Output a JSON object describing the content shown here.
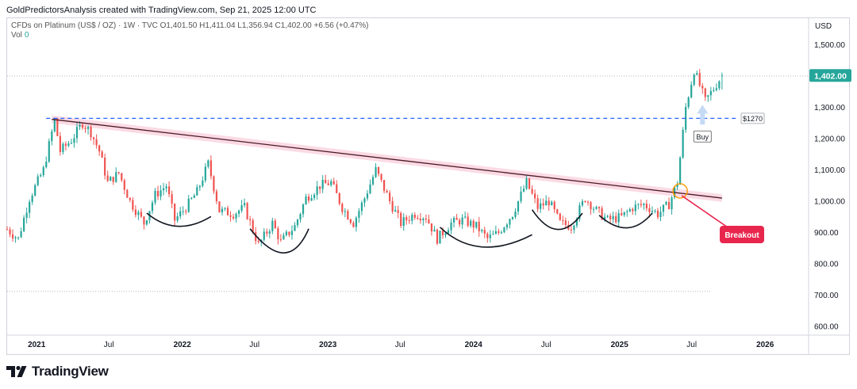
{
  "header": {
    "attribution": "GoldPredictorsAnalysis created with TradingView.com, Sep 21, 2025 12:00 UTC",
    "symbol_line": "CFDs on Platinum (US$ / OZ) · 1W · TVC  O1,401.50  H1,411.04  L1,356.94  C1,402.00  +6.56 (+0.47%)",
    "volume_label": "Vol",
    "volume_value": "0",
    "currency": "USD"
  },
  "brand": {
    "name": "TradingView",
    "logo_icon": "tradingview-logo-icon"
  },
  "colors": {
    "up": "#26a69a",
    "down": "#ef5350",
    "trendline": "#4a1a24",
    "channel": "#f8bbd0",
    "support": "#2962ff",
    "arc": "#131722",
    "breakout": "#e8264d",
    "circle": "#ff9800",
    "arrow": "#c5daf5",
    "price_badge": "#26a69a",
    "dotted_line": "#b8b8c4"
  },
  "chart_data": {
    "type": "candlestick",
    "title": "CFDs on Platinum (US$ / OZ) · 1W · TVC",
    "ohlc": {
      "open": 1401.5,
      "high": 1411.04,
      "low": 1356.94,
      "close": 1402.0,
      "change": 6.56,
      "change_pct": 0.47
    },
    "x_range": [
      "2020-10-19",
      "2026-04-20"
    ],
    "ylim": [
      572,
      1585
    ],
    "y_ticks": [
      "1,500.00",
      "1,400.00",
      "1,300.00",
      "1,200.00",
      "1,100.00",
      "1,000.00",
      "900.00",
      "800.00",
      "700.00",
      "600.00"
    ],
    "y_tick_values": [
      1500,
      1400,
      1300,
      1200,
      1100,
      1000,
      900,
      800,
      700,
      600
    ],
    "x_ticks": [
      {
        "label": "2021",
        "date": "2021-01-01",
        "bold": true
      },
      {
        "label": "Jul",
        "date": "2021-07-01",
        "bold": false
      },
      {
        "label": "2022",
        "date": "2022-01-01",
        "bold": true
      },
      {
        "label": "Jul",
        "date": "2022-07-01",
        "bold": false
      },
      {
        "label": "2023",
        "date": "2023-01-01",
        "bold": true
      },
      {
        "label": "Jul",
        "date": "2023-07-01",
        "bold": false
      },
      {
        "label": "2024",
        "date": "2024-01-01",
        "bold": true
      },
      {
        "label": "Jul",
        "date": "2024-07-01",
        "bold": false
      },
      {
        "label": "2025",
        "date": "2025-01-01",
        "bold": true
      },
      {
        "label": "Jul",
        "date": "2025-07-01",
        "bold": false
      },
      {
        "label": "2026",
        "date": "2026-01-01",
        "bold": true
      }
    ],
    "price_path": [
      [
        "2020-10-19",
        910
      ],
      [
        "2020-11-16",
        880
      ],
      [
        "2020-12-14",
        1010
      ],
      [
        "2021-01-18",
        1100
      ],
      [
        "2021-02-15",
        1260
      ],
      [
        "2021-03-01",
        1160
      ],
      [
        "2021-03-29",
        1195
      ],
      [
        "2021-04-26",
        1250
      ],
      [
        "2021-05-17",
        1220
      ],
      [
        "2021-06-07",
        1160
      ],
      [
        "2021-06-28",
        1060
      ],
      [
        "2021-07-26",
        1090
      ],
      [
        "2021-08-23",
        1000
      ],
      [
        "2021-09-27",
        930
      ],
      [
        "2021-10-25",
        1020
      ],
      [
        "2021-11-22",
        1050
      ],
      [
        "2021-12-13",
        940
      ],
      [
        "2022-01-10",
        980
      ],
      [
        "2022-02-07",
        1030
      ],
      [
        "2022-03-07",
        1120
      ],
      [
        "2022-04-04",
        970
      ],
      [
        "2022-05-09",
        960
      ],
      [
        "2022-06-06",
        980
      ],
      [
        "2022-07-11",
        860
      ],
      [
        "2022-08-15",
        930
      ],
      [
        "2022-09-05",
        870
      ],
      [
        "2022-10-10",
        920
      ],
      [
        "2022-11-07",
        1010
      ],
      [
        "2022-12-12",
        1050
      ],
      [
        "2023-01-09",
        1060
      ],
      [
        "2023-02-06",
        980
      ],
      [
        "2023-03-06",
        930
      ],
      [
        "2023-04-03",
        1010
      ],
      [
        "2023-05-01",
        1100
      ],
      [
        "2023-06-05",
        1000
      ],
      [
        "2023-07-03",
        930
      ],
      [
        "2023-08-07",
        960
      ],
      [
        "2023-09-04",
        950
      ],
      [
        "2023-10-02",
        880
      ],
      [
        "2023-11-06",
        930
      ],
      [
        "2023-12-04",
        940
      ],
      [
        "2024-01-08",
        920
      ],
      [
        "2024-02-05",
        880
      ],
      [
        "2024-03-04",
        900
      ],
      [
        "2024-04-08",
        960
      ],
      [
        "2024-05-13",
        1060
      ],
      [
        "2024-06-10",
        980
      ],
      [
        "2024-07-08",
        1000
      ],
      [
        "2024-08-05",
        930
      ],
      [
        "2024-09-02",
        920
      ],
      [
        "2024-10-07",
        1010
      ],
      [
        "2024-11-04",
        970
      ],
      [
        "2024-12-02",
        940
      ],
      [
        "2025-01-06",
        950
      ],
      [
        "2025-02-03",
        980
      ],
      [
        "2025-03-03",
        990
      ],
      [
        "2025-04-07",
        960
      ],
      [
        "2025-05-05",
        990
      ],
      [
        "2025-05-26",
        1060
      ],
      [
        "2025-06-16",
        1300
      ],
      [
        "2025-07-07",
        1420
      ],
      [
        "2025-08-04",
        1320
      ],
      [
        "2025-08-25",
        1360
      ],
      [
        "2025-09-15",
        1402
      ]
    ],
    "annotations": {
      "trendline": {
        "from": [
          "2021-02-08",
          1262
        ],
        "to": [
          "2025-09-15",
          1010
        ]
      },
      "channel_offset": 12,
      "support_line": {
        "value": 1265,
        "label": "$1270",
        "from": "2021-01-25",
        "to": "2025-10-27"
      },
      "price_badge": "1,402.00",
      "breakout_label": "Breakout",
      "buy_label": "Buy",
      "breakout_point": [
        "2025-06-02",
        1033
      ],
      "buy_point": [
        "2025-07-28",
        1250
      ],
      "dotted_line_top": 1400,
      "dotted_line_bottom": 712,
      "rounded_bottoms": [
        {
          "start": [
            "2021-10-04",
            962
          ],
          "low": [
            "2021-12-20",
            920
          ],
          "end": [
            "2022-03-14",
            951
          ]
        },
        {
          "start": [
            "2022-06-20",
            912
          ],
          "low": [
            "2022-09-12",
            835
          ],
          "end": [
            "2022-11-14",
            912
          ]
        },
        {
          "start": [
            "2023-10-09",
            917
          ],
          "low": [
            "2024-01-22",
            854
          ],
          "end": [
            "2024-05-27",
            893
          ]
        },
        {
          "start": [
            "2024-05-27",
            973
          ],
          "low": [
            "2024-07-29",
            910
          ],
          "end": [
            "2024-09-30",
            962
          ]
        },
        {
          "start": [
            "2024-11-11",
            955
          ],
          "low": [
            "2025-01-20",
            915
          ],
          "end": [
            "2025-03-24",
            962
          ]
        }
      ]
    }
  }
}
